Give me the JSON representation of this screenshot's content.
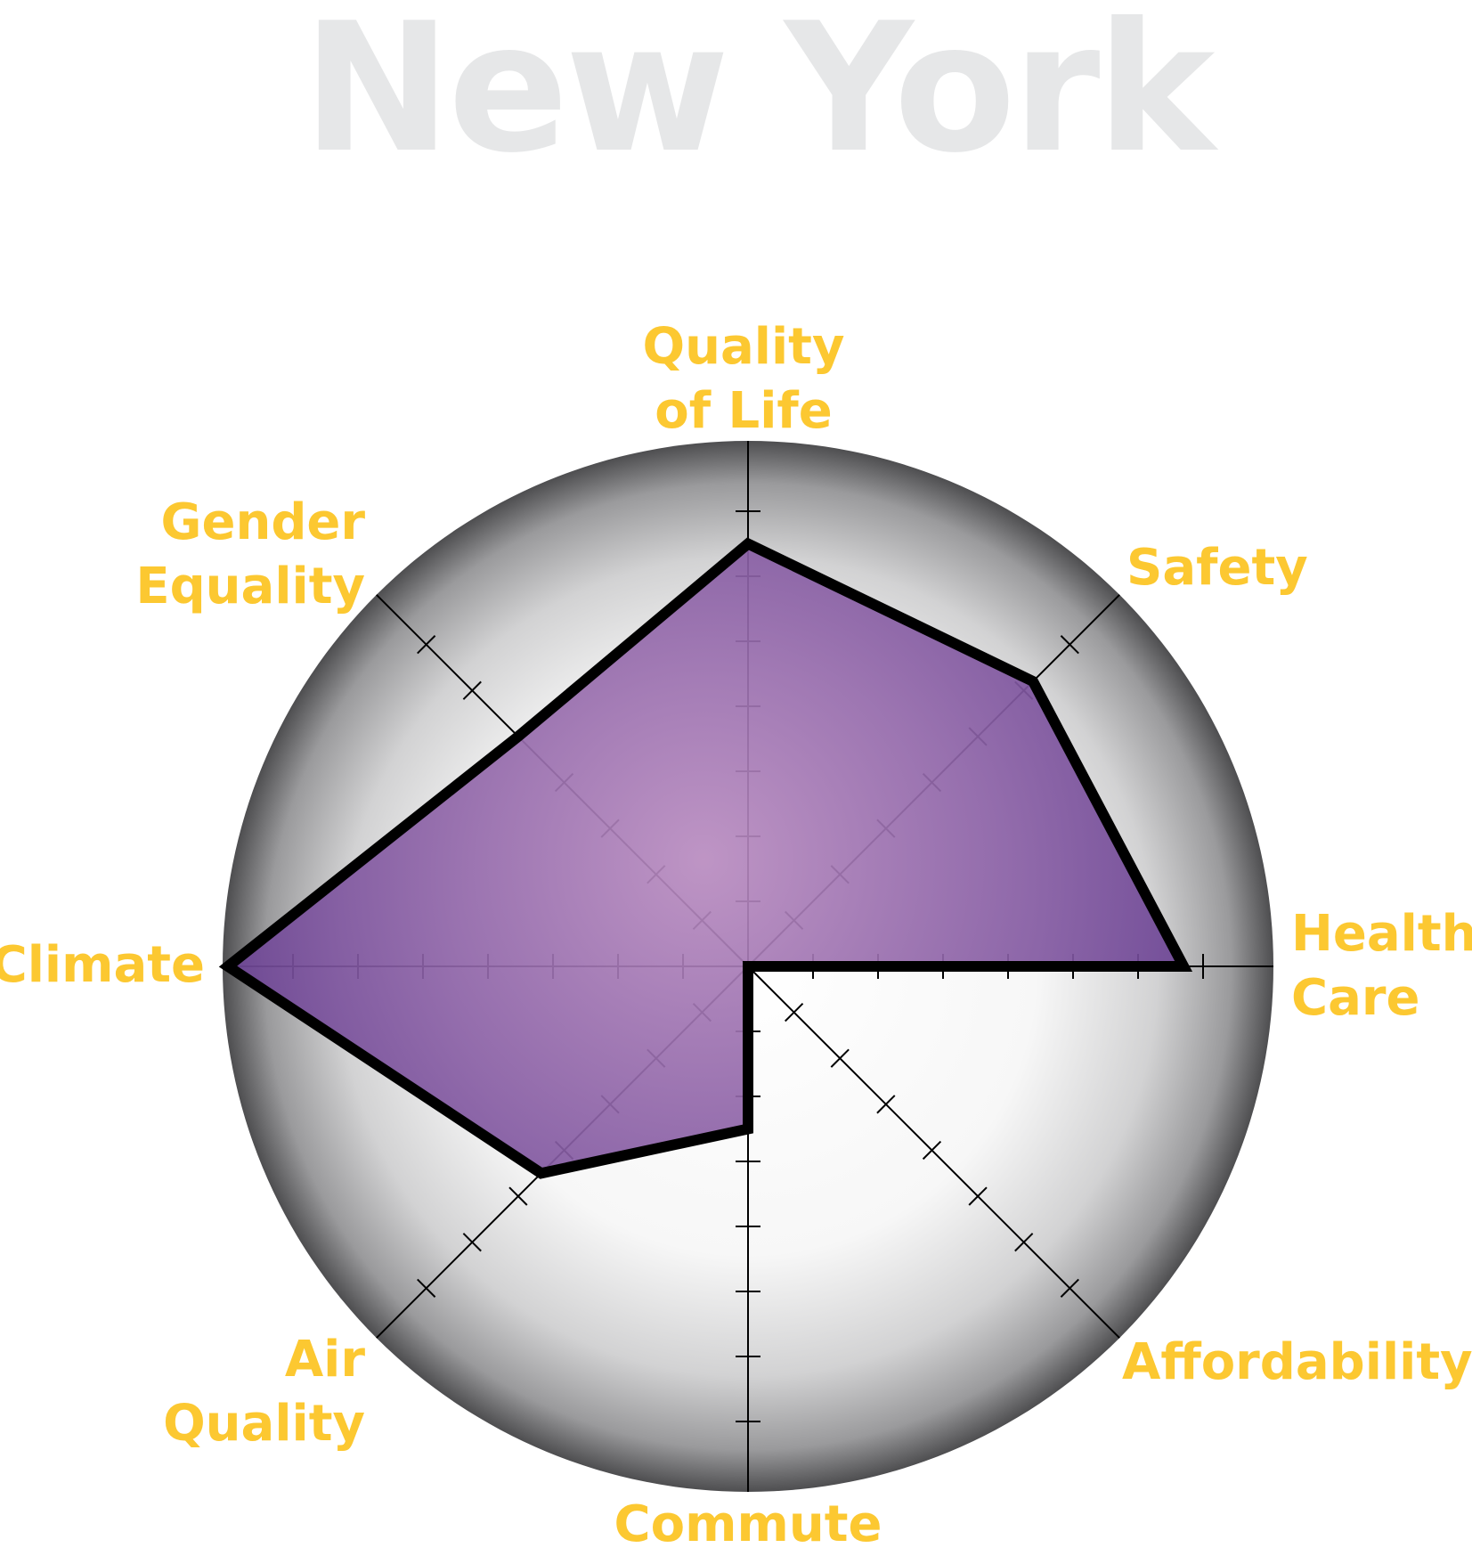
{
  "title": "New York",
  "colors": {
    "fill": "#8e5ea8",
    "outline": "#000000",
    "label": "#fcc831",
    "title": "#e6e7e8"
  },
  "chart_data": {
    "type": "radar",
    "title": "New York",
    "axes": [
      "Quality of Life",
      "Safety",
      "Health Care",
      "Affordability",
      "Commute",
      "Air Quality",
      "Climate",
      "Gender Equality"
    ],
    "axis_label_lines": [
      [
        "Quality",
        "of Life"
      ],
      [
        "Safety"
      ],
      [
        "Health",
        "Care"
      ],
      [
        "Affordability"
      ],
      [
        "Commute"
      ],
      [
        "Air",
        "Quality"
      ],
      [
        "Climate"
      ],
      [
        "Gender",
        "Equality"
      ]
    ],
    "values": [
      6.5,
      6.2,
      6.7,
      0,
      2.5,
      4.5,
      8.0,
      5.0
    ],
    "scale": {
      "min": 0,
      "max": 8,
      "ticks": 7
    }
  }
}
